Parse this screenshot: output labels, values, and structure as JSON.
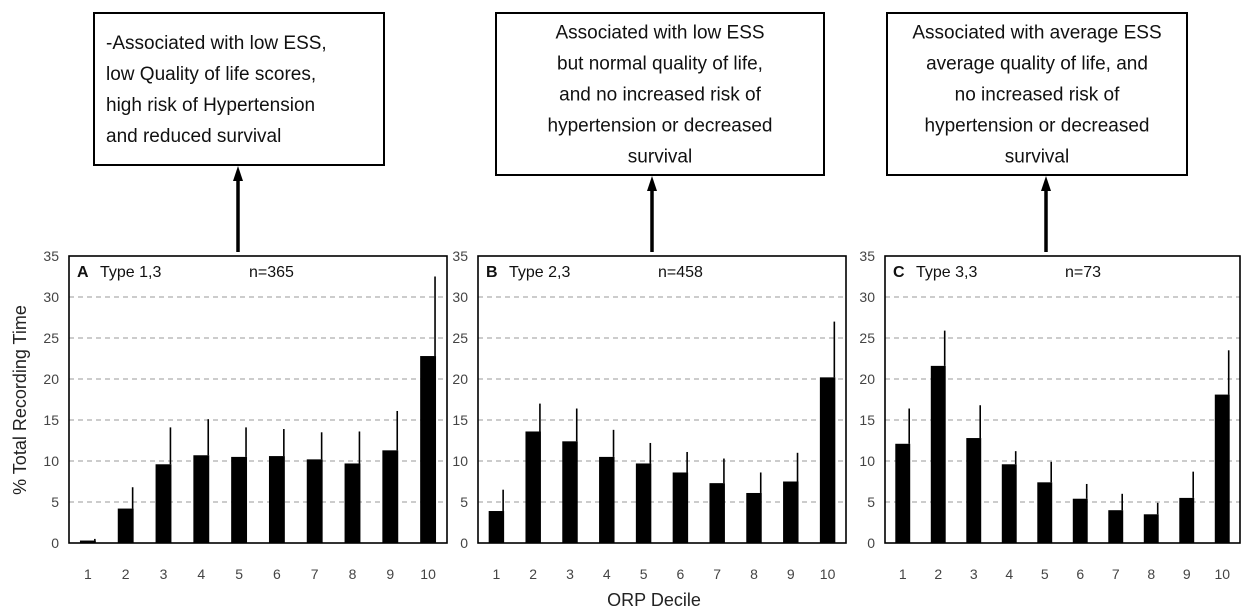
{
  "figure": {
    "ylabel": "% Total Recording Time",
    "xlabel": "ORP Decile",
    "colors": {
      "bar": "#000000",
      "grid": "#9a9a9a",
      "frame": "#000000",
      "tick_text": "#444444"
    }
  },
  "chart_data": [
    {
      "type": "bar",
      "panel": "A",
      "title": "Type 1,3",
      "n_label": "n=365",
      "annotation": [
        "-Associated with low ESS,",
        "low Quality of life scores,",
        "high risk of Hypertension",
        "and reduced survival"
      ],
      "categories": [
        "1",
        "2",
        "3",
        "4",
        "5",
        "6",
        "7",
        "8",
        "9",
        "10"
      ],
      "values": [
        0.3,
        4.2,
        9.6,
        10.7,
        10.5,
        10.6,
        10.2,
        9.7,
        11.3,
        22.8
      ],
      "errors": [
        0.2,
        2.6,
        4.5,
        4.4,
        3.6,
        3.3,
        3.3,
        3.9,
        4.8,
        9.7
      ],
      "yticks": [
        "0",
        "5",
        "10",
        "15",
        "20",
        "25",
        "30",
        "35"
      ],
      "ylim": [
        0,
        35
      ],
      "grid": true
    },
    {
      "type": "bar",
      "panel": "B",
      "title": "Type 2,3",
      "n_label": "n=458",
      "annotation": [
        "Associated with low ESS",
        "but normal quality of life,",
        "and no increased risk of",
        "hypertension or decreased",
        "survival"
      ],
      "categories": [
        "1",
        "2",
        "3",
        "4",
        "5",
        "6",
        "7",
        "8",
        "9",
        "10"
      ],
      "values": [
        3.9,
        13.6,
        12.4,
        10.5,
        9.7,
        8.6,
        7.3,
        6.1,
        7.5,
        20.2
      ],
      "errors": [
        2.6,
        3.4,
        4.0,
        3.3,
        2.5,
        2.5,
        3.0,
        2.5,
        3.5,
        6.8
      ],
      "yticks": [
        "0",
        "5",
        "10",
        "15",
        "20",
        "25",
        "30",
        "35"
      ],
      "ylim": [
        0,
        35
      ],
      "grid": true
    },
    {
      "type": "bar",
      "panel": "C",
      "title": "Type 3,3",
      "n_label": "n=73",
      "annotation": [
        "Associated with average ESS",
        "average quality of life, and",
        "no increased risk of",
        "hypertension or decreased",
        "survival"
      ],
      "categories": [
        "1",
        "2",
        "3",
        "4",
        "5",
        "6",
        "7",
        "8",
        "9",
        "10"
      ],
      "values": [
        12.1,
        21.6,
        12.8,
        9.6,
        7.4,
        5.4,
        4.0,
        3.5,
        5.5,
        18.1
      ],
      "errors": [
        4.3,
        4.3,
        4.0,
        1.6,
        2.5,
        1.8,
        2.0,
        1.4,
        3.2,
        5.4
      ],
      "yticks": [
        "0",
        "5",
        "10",
        "15",
        "20",
        "25",
        "30",
        "35"
      ],
      "ylim": [
        0,
        35
      ],
      "grid": true
    }
  ]
}
